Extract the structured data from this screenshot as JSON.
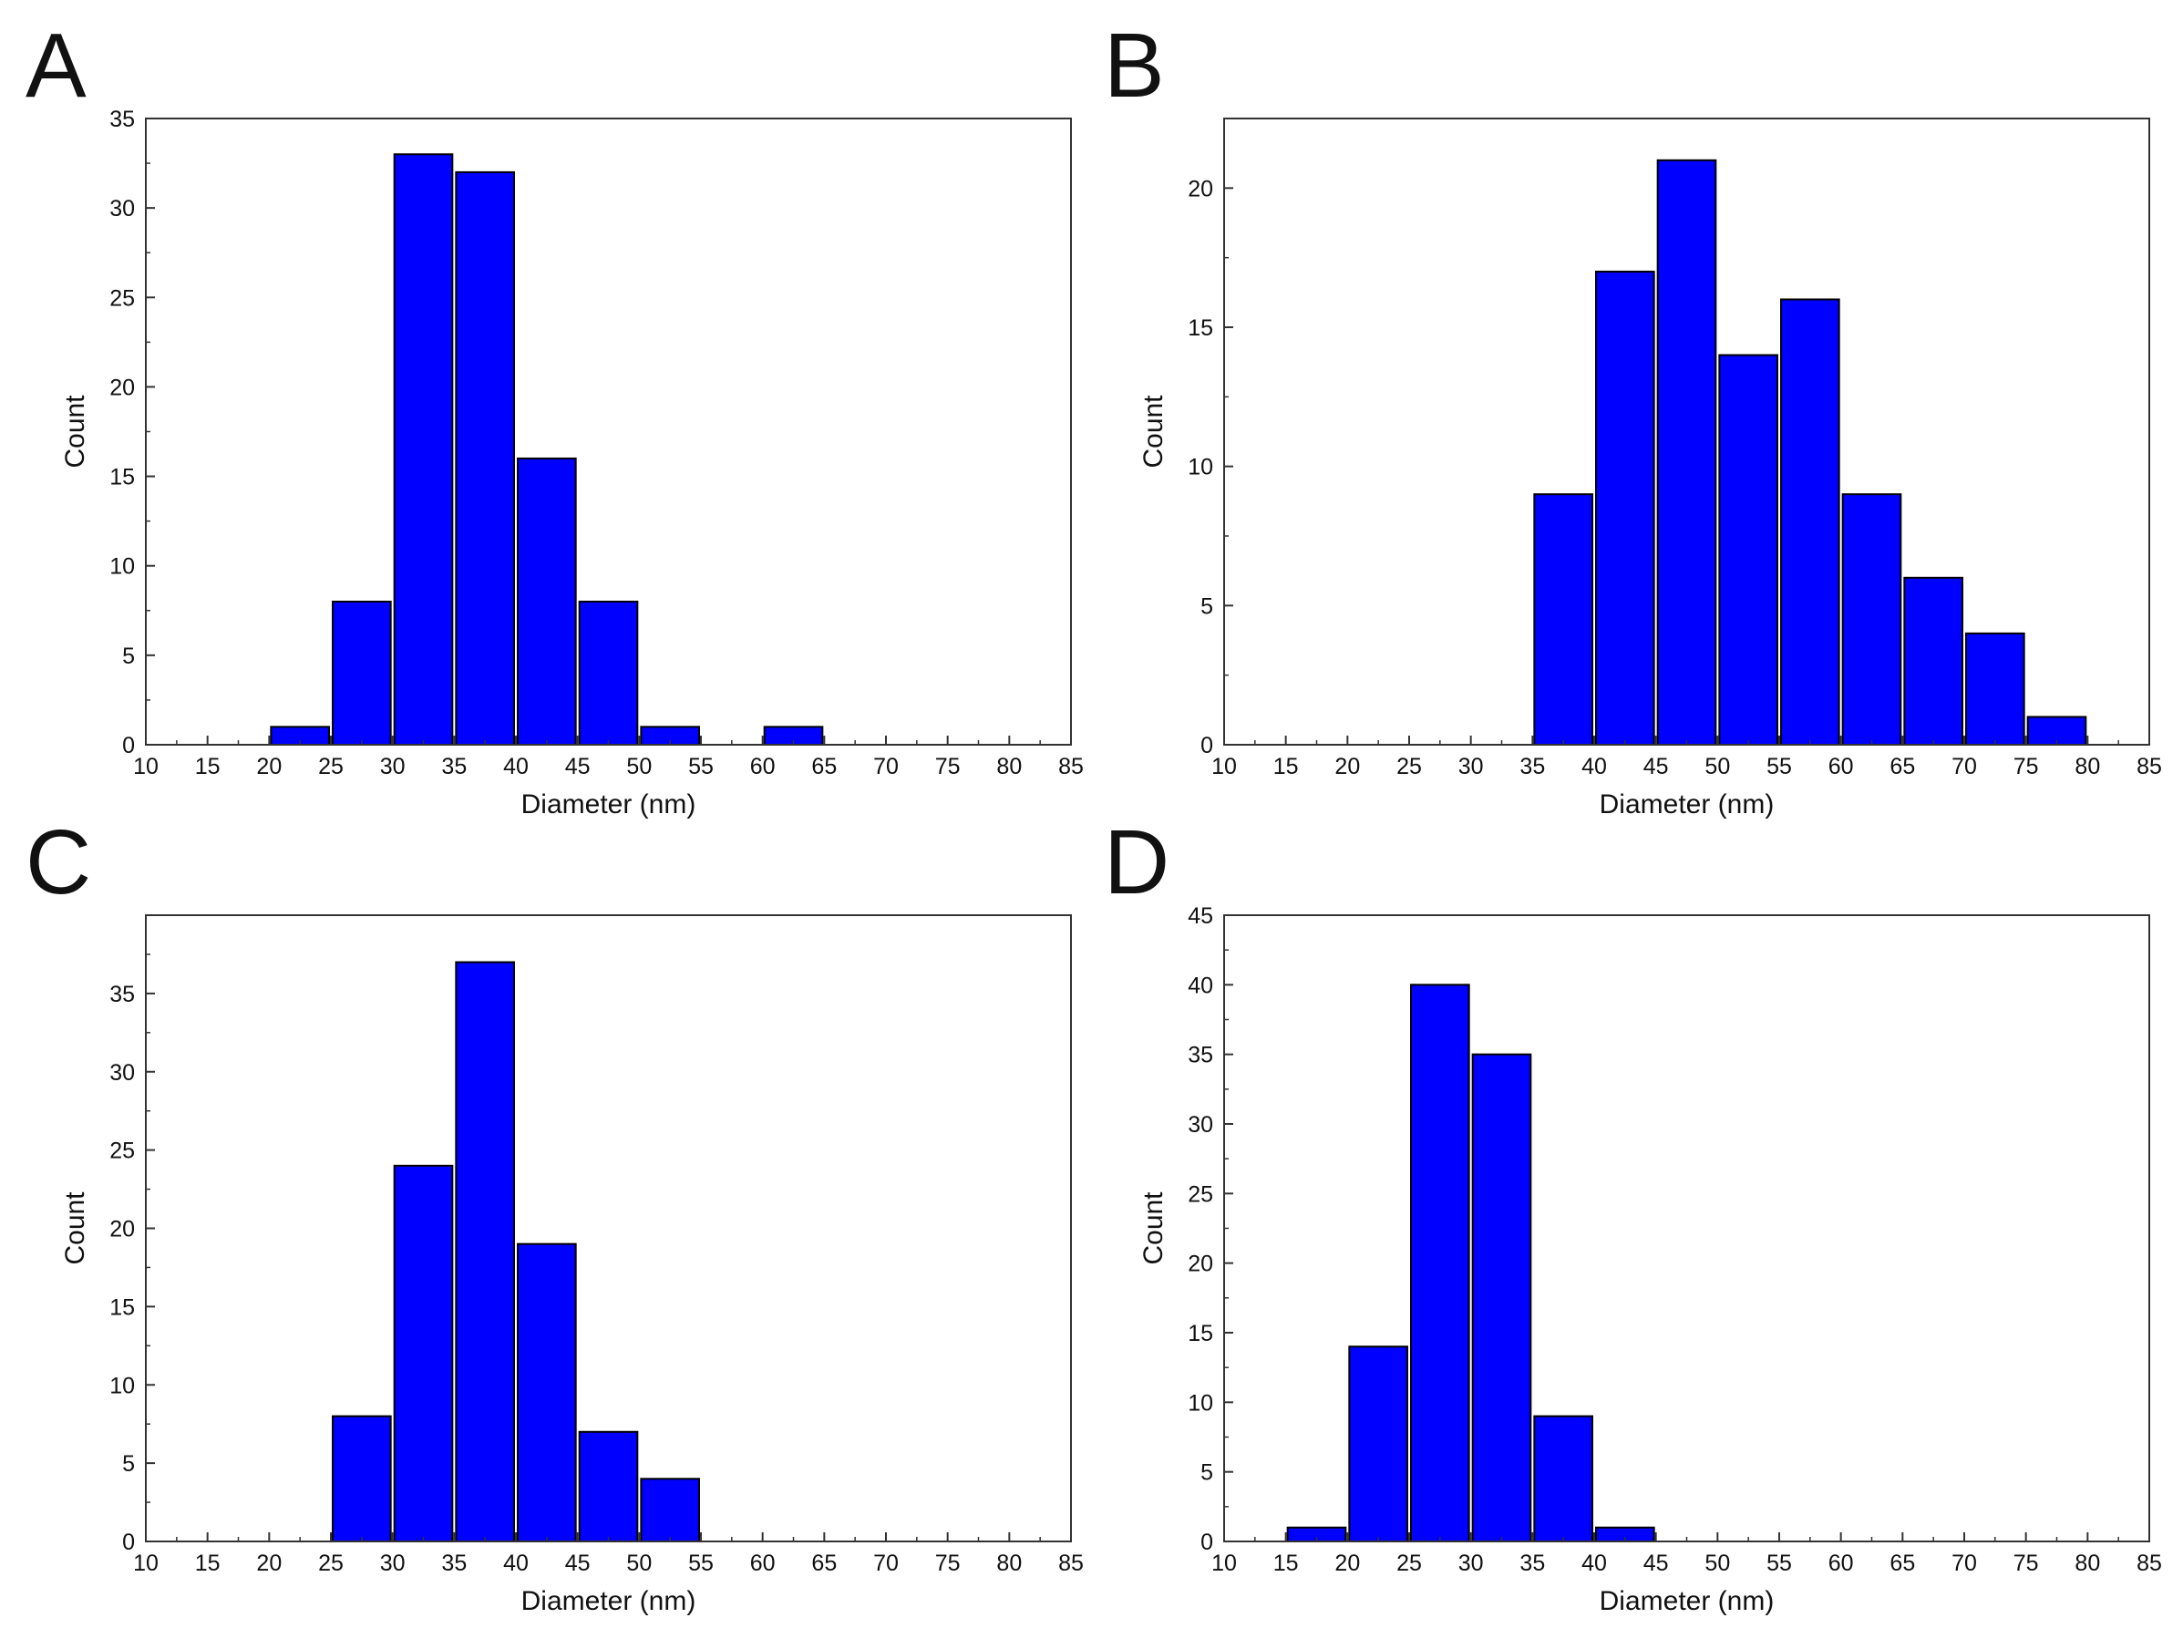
{
  "panels": [
    {
      "letter": "A"
    },
    {
      "letter": "B"
    },
    {
      "letter": "C"
    },
    {
      "letter": "D"
    }
  ],
  "colors": {
    "bar": "#0000ff",
    "bar_edge": "#000000",
    "axis": "#333333"
  },
  "chart_data": [
    {
      "panel": "A",
      "type": "bar",
      "bins": [
        [
          20,
          25
        ],
        [
          25,
          30
        ],
        [
          30,
          35
        ],
        [
          35,
          40
        ],
        [
          40,
          45
        ],
        [
          45,
          50
        ],
        [
          50,
          55
        ],
        [
          60,
          65
        ]
      ],
      "values": [
        1,
        8,
        33,
        32,
        16,
        8,
        1,
        1
      ],
      "xlabel": "Diameter (nm)",
      "ylabel": "Count",
      "xlim": [
        10,
        85
      ],
      "ylim": [
        0,
        35
      ],
      "xticks": [
        10,
        15,
        20,
        25,
        30,
        35,
        40,
        45,
        50,
        55,
        60,
        65,
        70,
        75,
        80,
        85
      ],
      "yticks": [
        0,
        5,
        10,
        15,
        20,
        25,
        30,
        35
      ],
      "grid": false
    },
    {
      "panel": "B",
      "type": "bar",
      "bins": [
        [
          35,
          40
        ],
        [
          40,
          45
        ],
        [
          45,
          50
        ],
        [
          50,
          55
        ],
        [
          55,
          60
        ],
        [
          60,
          65
        ],
        [
          65,
          70
        ],
        [
          70,
          75
        ],
        [
          75,
          80
        ]
      ],
      "values": [
        9,
        17,
        21,
        14,
        16,
        9,
        6,
        4,
        1
      ],
      "xlabel": "Diameter (nm)",
      "ylabel": "Count",
      "xlim": [
        10,
        85
      ],
      "ylim": [
        0,
        22.5
      ],
      "xticks": [
        10,
        15,
        20,
        25,
        30,
        35,
        40,
        45,
        50,
        55,
        60,
        65,
        70,
        75,
        80,
        85
      ],
      "yticks": [
        0,
        5,
        10,
        15,
        20
      ],
      "grid": false
    },
    {
      "panel": "C",
      "type": "bar",
      "bins": [
        [
          25,
          30
        ],
        [
          30,
          35
        ],
        [
          35,
          40
        ],
        [
          40,
          45
        ],
        [
          45,
          50
        ],
        [
          50,
          55
        ]
      ],
      "values": [
        8,
        24,
        37,
        19,
        7,
        4
      ],
      "xlabel": "Diameter (nm)",
      "ylabel": "Count",
      "xlim": [
        10,
        85
      ],
      "ylim": [
        0,
        40
      ],
      "xticks": [
        10,
        15,
        20,
        25,
        30,
        35,
        40,
        45,
        50,
        55,
        60,
        65,
        70,
        75,
        80,
        85
      ],
      "yticks": [
        0,
        5,
        10,
        15,
        20,
        25,
        30,
        35
      ],
      "grid": false
    },
    {
      "panel": "D",
      "type": "bar",
      "bins": [
        [
          15,
          20
        ],
        [
          20,
          25
        ],
        [
          25,
          30
        ],
        [
          30,
          35
        ],
        [
          35,
          40
        ],
        [
          40,
          45
        ]
      ],
      "values": [
        1,
        14,
        40,
        35,
        9,
        1
      ],
      "xlabel": "Diameter (nm)",
      "ylabel": "Count",
      "xlim": [
        10,
        85
      ],
      "ylim": [
        0,
        45
      ],
      "xticks": [
        10,
        15,
        20,
        25,
        30,
        35,
        40,
        45,
        50,
        55,
        60,
        65,
        70,
        75,
        80,
        85
      ],
      "yticks": [
        0,
        5,
        10,
        15,
        20,
        25,
        30,
        35,
        40,
        45
      ],
      "grid": false
    }
  ]
}
